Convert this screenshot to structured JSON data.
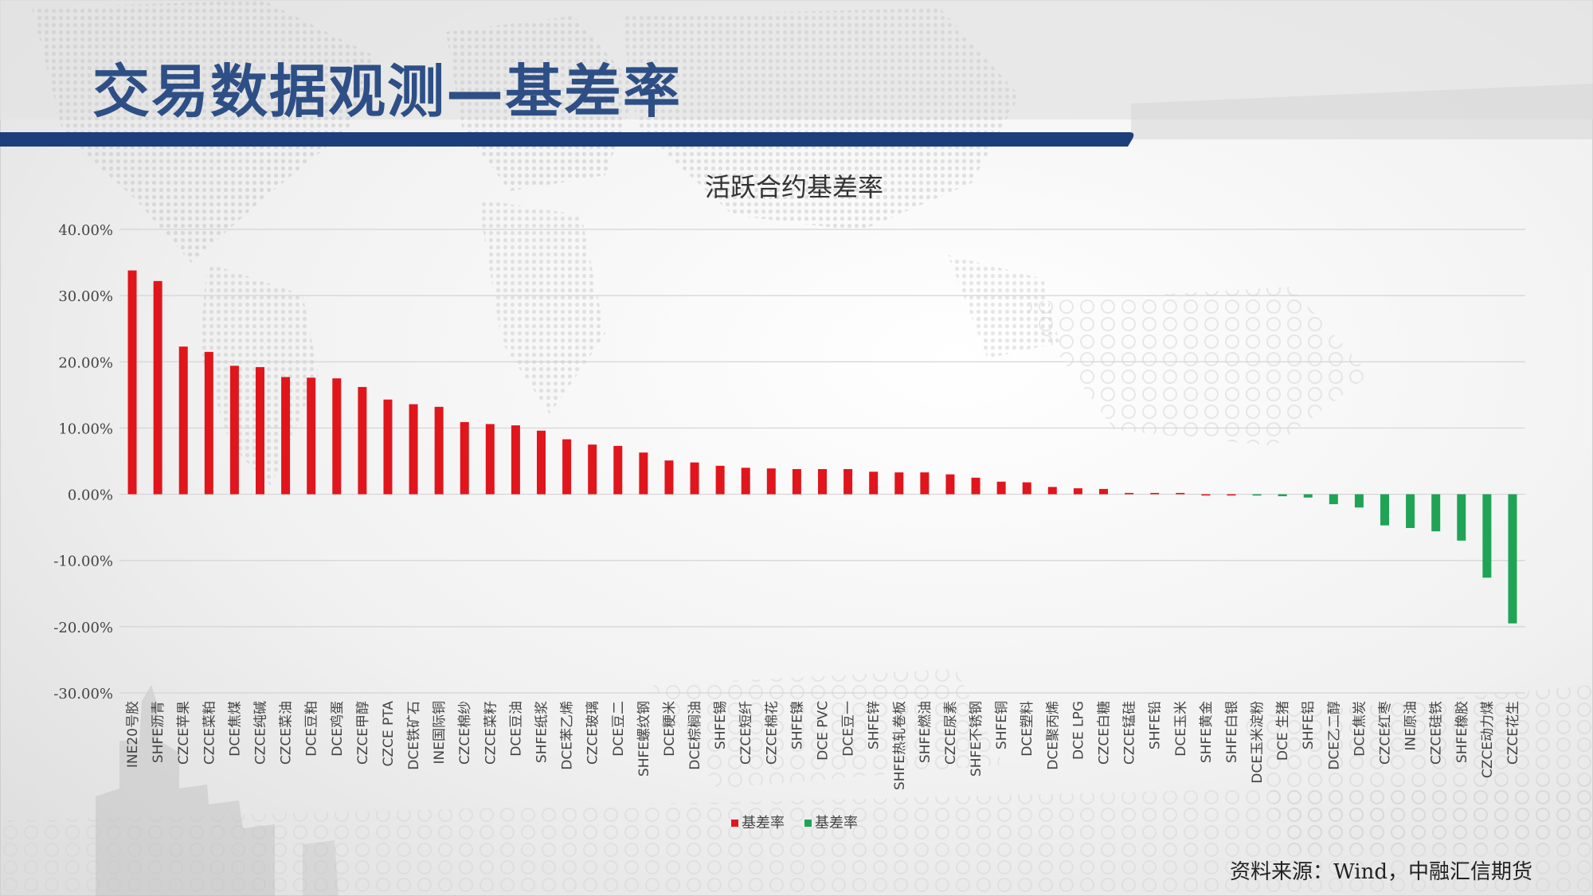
{
  "page": {
    "title": "交易数据观测—基差率",
    "source": "资料来源：Wind，中融汇信期货"
  },
  "chart_data": {
    "type": "bar",
    "title": "活跃合约基差率",
    "ylim": [
      -30,
      40
    ],
    "yticks": [
      40,
      30,
      20,
      10,
      0,
      -10,
      -20,
      -30
    ],
    "ytick_labels": [
      "40.00%",
      "30.00%",
      "20.00%",
      "10.00%",
      "0.00%",
      "-10.00%",
      "-20.00%",
      "-30.00%"
    ],
    "grid": true,
    "legend": {
      "placement": "bottom",
      "entries": [
        {
          "label": "基差率",
          "color": "#e0161c"
        },
        {
          "label": "基差率",
          "color": "#1fa456"
        }
      ]
    },
    "colors": {
      "positive": "#e0161c",
      "negative": "#1fa456"
    },
    "categories": [
      "INE20号胶",
      "SHFE沥青",
      "CZCE苹果",
      "CZCE菜粕",
      "DCE焦煤",
      "CZCE纯碱",
      "CZCE菜油",
      "DCE豆粕",
      "DCE鸡蛋",
      "CZCE甲醇",
      "CZCE PTA",
      "DCE铁矿石",
      "INE国际铜",
      "CZCE棉纱",
      "CZCE菜籽",
      "DCE豆油",
      "SHFE纸浆",
      "DCE苯乙烯",
      "CZCE玻璃",
      "DCE豆二",
      "SHFE螺纹钢",
      "DCE粳米",
      "DCE棕榈油",
      "SHFE锡",
      "CZCE短纤",
      "CZCE棉花",
      "SHFE镍",
      "DCE PVC",
      "DCE豆一",
      "SHFE锌",
      "SHFE热轧卷板",
      "SHFE燃油",
      "CZCE尿素",
      "SHFE不锈钢",
      "SHFE铜",
      "DCE塑料",
      "DCE聚丙烯",
      "DCE LPG",
      "CZCE白糖",
      "CZCE锰硅",
      "SHFE铅",
      "DCE玉米",
      "SHFE黄金",
      "SHFE白银",
      "DCE玉米淀粉",
      "DCE 生猪",
      "SHFE铝",
      "DCE乙二醇",
      "DCE焦炭",
      "CZCE红枣",
      "INE原油",
      "CZCE硅铁",
      "SHFE橡胶",
      "CZCE动力煤",
      "CZCE花生"
    ],
    "values": [
      33.8,
      32.2,
      22.3,
      21.5,
      19.4,
      19.2,
      17.7,
      17.6,
      17.5,
      16.2,
      14.3,
      13.6,
      13.2,
      10.9,
      10.6,
      10.4,
      9.6,
      8.3,
      7.5,
      7.3,
      6.3,
      5.1,
      4.8,
      4.3,
      4.0,
      3.9,
      3.8,
      3.8,
      3.8,
      3.4,
      3.3,
      3.3,
      3.0,
      2.5,
      1.9,
      1.8,
      1.1,
      0.9,
      0.8,
      0.2,
      0.2,
      0.2,
      0.0,
      0.0,
      -0.2,
      -0.3,
      -0.5,
      -1.5,
      -2.0,
      -4.7,
      -5.1,
      -5.6,
      -7.0,
      -12.6,
      -19.5
    ]
  }
}
